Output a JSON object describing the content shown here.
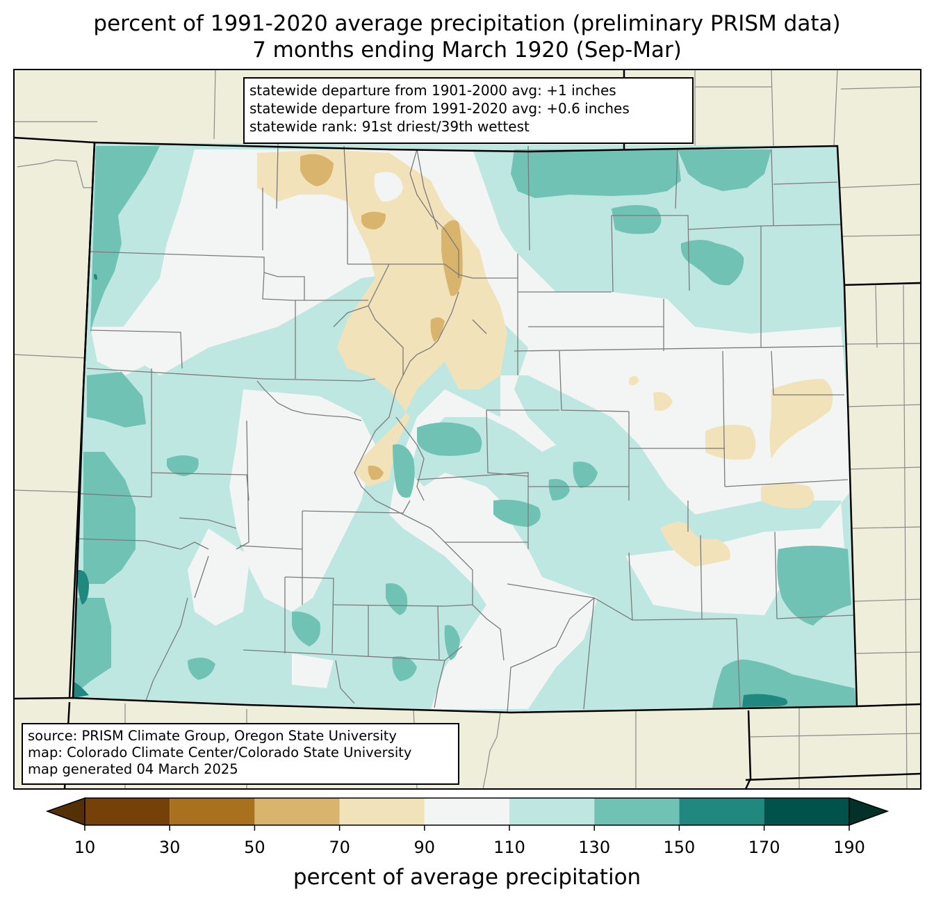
{
  "title": {
    "line1": "percent of 1991-2020 average precipitation (preliminary PRISM data)",
    "line2": "7 months ending March 1920 (Sep-Mar)"
  },
  "stats": {
    "line1": "statewide departure from 1901-2000 avg: +1 inches",
    "line2": "statewide departure from 1991-2020 avg: +0.6 inches",
    "line3": "statewide rank: 91st driest/39th wettest"
  },
  "source": {
    "line1": "source: PRISM Climate Group, Oregon State University",
    "line2": "map: Colorado Climate Center/Colorado State University",
    "line3": "map generated 04 March 2025"
  },
  "colorbar": {
    "label": "percent of average precipitation",
    "ticks": [
      "10",
      "30",
      "50",
      "70",
      "90",
      "110",
      "130",
      "150",
      "170",
      "190"
    ],
    "colors": [
      "#543005",
      "#754109",
      "#a9701e",
      "#d8b46d",
      "#f1e2b9",
      "#f3f5f4",
      "#bfe7e1",
      "#70c2b5",
      "#218880",
      "#01524a",
      "#013129"
    ]
  },
  "map_colors": {
    "background": "#efeedb",
    "dry_70_90": "#f1e2b9",
    "dry_50_70": "#d8b46d",
    "normal_90_110": "#f3f5f4",
    "wet_110_130": "#bfe7e1",
    "wet_130_150": "#70c2b5",
    "wet_150_170": "#218880"
  }
}
